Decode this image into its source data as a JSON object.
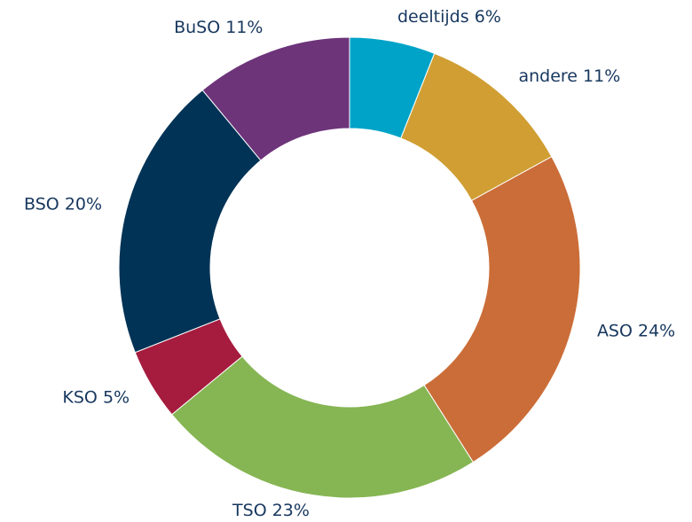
{
  "chart_data": {
    "type": "donut",
    "categories": [
      "deeltijds",
      "andere",
      "ASO",
      "TSO",
      "KSO",
      "BSO",
      "BuSO"
    ],
    "values": [
      6,
      11,
      24,
      23,
      5,
      20,
      11
    ],
    "value_labels": [
      "6%",
      "11%",
      "24%",
      "23%",
      "5%",
      "20%",
      "11%"
    ],
    "colors": [
      "#00a3c8",
      "#d09e33",
      "#cb6d38",
      "#86b553",
      "#a51c3f",
      "#003356",
      "#6d347a"
    ]
  }
}
